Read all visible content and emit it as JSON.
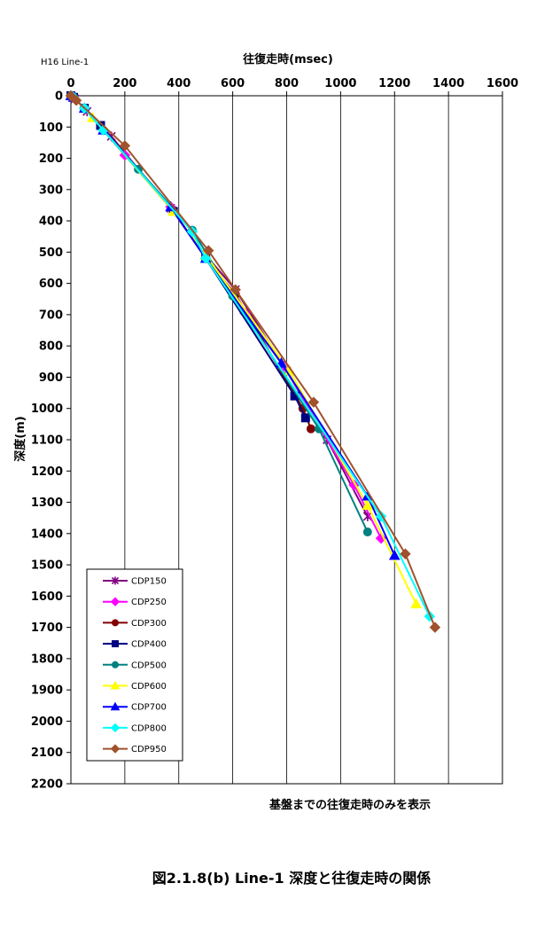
{
  "corner_label": "H16  Line-1",
  "note": "基盤までの往復走時のみを表示",
  "caption": "図2.1.8(b)        Line-1   深度と往復走時の関係",
  "chart_data": {
    "type": "line",
    "title": "",
    "xlabel": "往復走時(msec)",
    "ylabel": "深度(m)",
    "xlim": [
      0,
      1600
    ],
    "ylim": [
      0,
      2200
    ],
    "x_ticks": [
      0,
      200,
      400,
      600,
      800,
      1000,
      1200,
      1400,
      1600
    ],
    "y_ticks": [
      0,
      100,
      200,
      300,
      400,
      500,
      600,
      700,
      800,
      900,
      1000,
      1100,
      1200,
      1300,
      1400,
      1500,
      1600,
      1700,
      1800,
      1900,
      2000,
      2100,
      2200
    ],
    "x_axis_position": "top",
    "y_axis_inverted": true,
    "grid": "vertical",
    "legend_position": "bottom-left",
    "series": [
      {
        "name": "CDP150",
        "color": "#800080",
        "marker": "star",
        "points": [
          [
            0,
            0
          ],
          [
            15,
            10
          ],
          [
            60,
            50
          ],
          [
            150,
            130
          ],
          [
            370,
            360
          ],
          [
            500,
            510
          ],
          [
            610,
            620
          ],
          [
            800,
            880
          ],
          [
            950,
            1100
          ],
          [
            1100,
            1345
          ]
        ]
      },
      {
        "name": "CDP250",
        "color": "#ff00ff",
        "marker": "diamond",
        "points": [
          [
            0,
            0
          ],
          [
            10,
            5
          ],
          [
            50,
            40
          ],
          [
            200,
            190
          ],
          [
            370,
            355
          ],
          [
            500,
            520
          ],
          [
            645,
            695
          ],
          [
            790,
            865
          ],
          [
            1050,
            1245
          ],
          [
            1150,
            1415
          ]
        ]
      },
      {
        "name": "CDP300",
        "color": "#800000",
        "marker": "circle",
        "points": [
          [
            0,
            0
          ],
          [
            10,
            5
          ],
          [
            50,
            40
          ],
          [
            120,
            110
          ],
          [
            380,
            370
          ],
          [
            500,
            520
          ],
          [
            610,
            635
          ],
          [
            860,
            1000
          ],
          [
            890,
            1065
          ]
        ]
      },
      {
        "name": "CDP400",
        "color": "#000080",
        "marker": "square",
        "points": [
          [
            0,
            0
          ],
          [
            10,
            5
          ],
          [
            50,
            40
          ],
          [
            110,
            95
          ],
          [
            380,
            370
          ],
          [
            500,
            520
          ],
          [
            830,
            960
          ],
          [
            870,
            1030
          ]
        ]
      },
      {
        "name": "CDP500",
        "color": "#008080",
        "marker": "circle",
        "points": [
          [
            0,
            0
          ],
          [
            10,
            5
          ],
          [
            50,
            40
          ],
          [
            250,
            235
          ],
          [
            450,
            430
          ],
          [
            600,
            640
          ],
          [
            920,
            1065
          ],
          [
            1100,
            1395
          ]
        ]
      },
      {
        "name": "CDP600",
        "color": "#ffff00",
        "marker": "triangle",
        "points": [
          [
            0,
            0
          ],
          [
            10,
            5
          ],
          [
            80,
            70
          ],
          [
            380,
            370
          ],
          [
            500,
            510
          ],
          [
            810,
            880
          ],
          [
            1100,
            1310
          ],
          [
            1280,
            1625
          ]
        ]
      },
      {
        "name": "CDP700",
        "color": "#0000ff",
        "marker": "triangle",
        "points": [
          [
            0,
            0
          ],
          [
            10,
            5
          ],
          [
            50,
            40
          ],
          [
            120,
            110
          ],
          [
            370,
            355
          ],
          [
            500,
            520
          ],
          [
            780,
            855
          ],
          [
            1100,
            1280
          ],
          [
            1200,
            1470
          ]
        ]
      },
      {
        "name": "CDP800",
        "color": "#00ffff",
        "marker": "diamond",
        "points": [
          [
            0,
            0
          ],
          [
            10,
            5
          ],
          [
            50,
            40
          ],
          [
            120,
            110
          ],
          [
            450,
            435
          ],
          [
            500,
            520
          ],
          [
            1150,
            1345
          ],
          [
            1330,
            1665
          ]
        ]
      },
      {
        "name": "CDP950",
        "color": "#a0522d",
        "marker": "diamond",
        "points": [
          [
            0,
            0
          ],
          [
            20,
            15
          ],
          [
            200,
            160
          ],
          [
            510,
            495
          ],
          [
            610,
            620
          ],
          [
            900,
            980
          ],
          [
            1240,
            1465
          ],
          [
            1350,
            1700
          ]
        ]
      }
    ]
  }
}
